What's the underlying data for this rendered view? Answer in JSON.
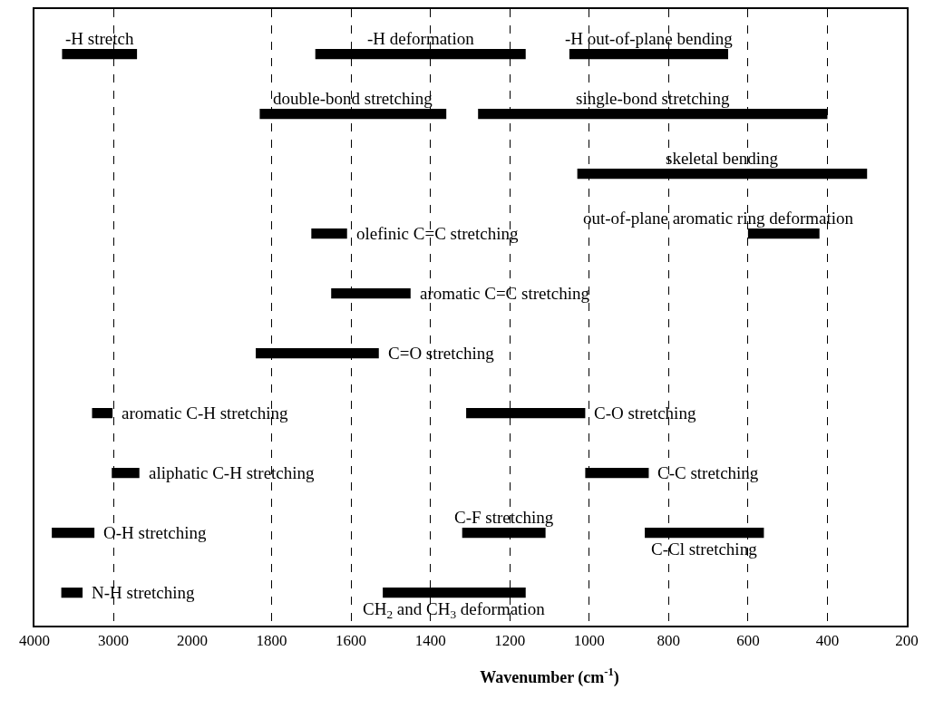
{
  "chart_data": [
    {
      "type": "bar",
      "orientation": "horizontal",
      "categories": [
        null,
        null,
        null,
        null,
        null,
        null,
        null,
        null,
        null,
        null
      ],
      "xlim": [
        4000,
        2000
      ],
      "xticks": [
        4000,
        3000,
        2000
      ],
      "grid": "x",
      "legend": false,
      "tick_labels": "x",
      "series": [
        {
          "name": "-H stretch",
          "color": "#000000",
          "values": [
            950,
            null,
            null,
            null,
            null,
            null,
            null,
            null,
            null,
            null
          ],
          "base": [
            2700,
            null,
            null,
            null,
            null,
            null,
            null,
            null,
            null,
            null
          ]
        },
        {
          "name": "aromatic C-H stretching",
          "color": "#000000",
          "values": [
            null,
            null,
            null,
            null,
            null,
            null,
            260,
            null,
            null,
            null
          ],
          "base": [
            null,
            null,
            null,
            null,
            null,
            null,
            3010,
            null,
            null,
            null
          ]
        },
        {
          "name": "aliphatic C-H stretching",
          "color": "#000000",
          "values": [
            null,
            null,
            null,
            null,
            null,
            null,
            null,
            350,
            null,
            null
          ],
          "base": [
            null,
            null,
            null,
            null,
            null,
            null,
            null,
            2670,
            null,
            null
          ]
        },
        {
          "name": "O-H stretching",
          "color": "#000000",
          "values": [
            null,
            null,
            null,
            null,
            null,
            null,
            null,
            null,
            540,
            null
          ],
          "base": [
            null,
            null,
            null,
            null,
            null,
            null,
            null,
            null,
            3240,
            null
          ]
        },
        {
          "name": "N-H stretching",
          "color": "#000000",
          "values": [
            null,
            null,
            null,
            null,
            null,
            null,
            null,
            null,
            null,
            270
          ],
          "base": [
            null,
            null,
            null,
            null,
            null,
            null,
            null,
            null,
            null,
            3390
          ]
        }
      ]
    },
    {
      "type": "bar",
      "orientation": "horizontal",
      "categories": [
        null,
        null,
        null,
        null,
        null,
        null,
        null,
        null,
        null,
        null
      ],
      "xlim": [
        2000,
        200
      ],
      "xticks": [
        1800,
        1600,
        1400,
        1200,
        1000,
        800,
        600,
        400,
        200
      ],
      "xlabel": "Wavenumber (cm$^{-1}$)",
      "grid": "x",
      "legend": false,
      "tick_labels": "x",
      "series": [
        {
          "name": "-H deformation",
          "color": "#000000",
          "values": [
            530,
            null,
            null,
            null,
            null,
            null,
            null,
            null,
            null,
            null
          ],
          "base": [
            1160,
            null,
            null,
            null,
            null,
            null,
            null,
            null,
            null,
            null
          ]
        },
        {
          "name": "-H out-of-plane bending",
          "color": "#000000",
          "values": [
            400,
            null,
            null,
            null,
            null,
            null,
            null,
            null,
            null,
            null
          ],
          "base": [
            650,
            null,
            null,
            null,
            null,
            null,
            null,
            null,
            null,
            null
          ]
        },
        {
          "name": "double-bond stretching",
          "color": "#000000",
          "values": [
            null,
            470,
            null,
            null,
            null,
            null,
            null,
            null,
            null,
            null
          ],
          "base": [
            null,
            1360,
            null,
            null,
            null,
            null,
            null,
            null,
            null,
            null
          ]
        },
        {
          "name": "single-bond stretching",
          "color": "#000000",
          "values": [
            null,
            880,
            null,
            null,
            null,
            null,
            null,
            null,
            null,
            null
          ],
          "base": [
            null,
            400,
            null,
            null,
            null,
            null,
            null,
            null,
            null,
            null
          ]
        },
        {
          "name": "skeletal bending",
          "color": "#000000",
          "values": [
            null,
            null,
            730,
            null,
            null,
            null,
            null,
            null,
            null,
            null
          ],
          "base": [
            null,
            null,
            300,
            null,
            null,
            null,
            null,
            null,
            null,
            null
          ]
        },
        {
          "name": "olefinic C=C stretching",
          "color": "#000000",
          "values": [
            null,
            null,
            null,
            90,
            null,
            null,
            null,
            null,
            null,
            null
          ],
          "base": [
            null,
            null,
            null,
            1610,
            null,
            null,
            null,
            null,
            null,
            null
          ]
        },
        {
          "name": "out-of-plane aromatic ring deformation",
          "color": "#000000",
          "values": [
            null,
            null,
            null,
            180,
            null,
            null,
            null,
            null,
            null,
            null
          ],
          "base": [
            null,
            null,
            null,
            420,
            null,
            null,
            null,
            null,
            null,
            null
          ]
        },
        {
          "name": "aromatic C=C stretching",
          "color": "#000000",
          "values": [
            null,
            null,
            null,
            null,
            200,
            null,
            null,
            null,
            null,
            null
          ],
          "base": [
            null,
            null,
            null,
            null,
            1450,
            null,
            null,
            null,
            null,
            null
          ]
        },
        {
          "name": "C=O stretching",
          "color": "#000000",
          "values": [
            null,
            null,
            null,
            null,
            null,
            310,
            null,
            null,
            null,
            null
          ],
          "base": [
            null,
            null,
            null,
            null,
            null,
            1530,
            null,
            null,
            null,
            null
          ]
        },
        {
          "name": "C-O stretching",
          "color": "#000000",
          "values": [
            null,
            null,
            null,
            null,
            null,
            null,
            300,
            null,
            null,
            null
          ],
          "base": [
            null,
            null,
            null,
            null,
            null,
            null,
            1010,
            null,
            null,
            null
          ]
        },
        {
          "name": "C-C stretching",
          "color": "#000000",
          "values": [
            null,
            null,
            null,
            null,
            null,
            null,
            null,
            160,
            null,
            null
          ],
          "base": [
            null,
            null,
            null,
            null,
            null,
            null,
            null,
            850,
            null,
            null
          ]
        },
        {
          "name": "C-F stretching",
          "color": "#000000",
          "values": [
            null,
            null,
            null,
            null,
            null,
            null,
            null,
            null,
            210,
            null
          ],
          "base": [
            null,
            null,
            null,
            null,
            null,
            null,
            null,
            null,
            1110,
            null
          ]
        },
        {
          "name": "C-Cl stretching",
          "color": "#000000",
          "values": [
            null,
            null,
            null,
            null,
            null,
            null,
            null,
            null,
            300,
            null
          ],
          "base": [
            null,
            null,
            null,
            null,
            null,
            null,
            null,
            null,
            560,
            null
          ]
        },
        {
          "name": "CH$_{2}$ and CH$_{3}$ deformation",
          "color": "#000000",
          "values": [
            null,
            null,
            null,
            null,
            null,
            null,
            null,
            null,
            null,
            360
          ],
          "base": [
            null,
            null,
            null,
            null,
            null,
            null,
            null,
            null,
            null,
            1160
          ]
        }
      ]
    }
  ]
}
